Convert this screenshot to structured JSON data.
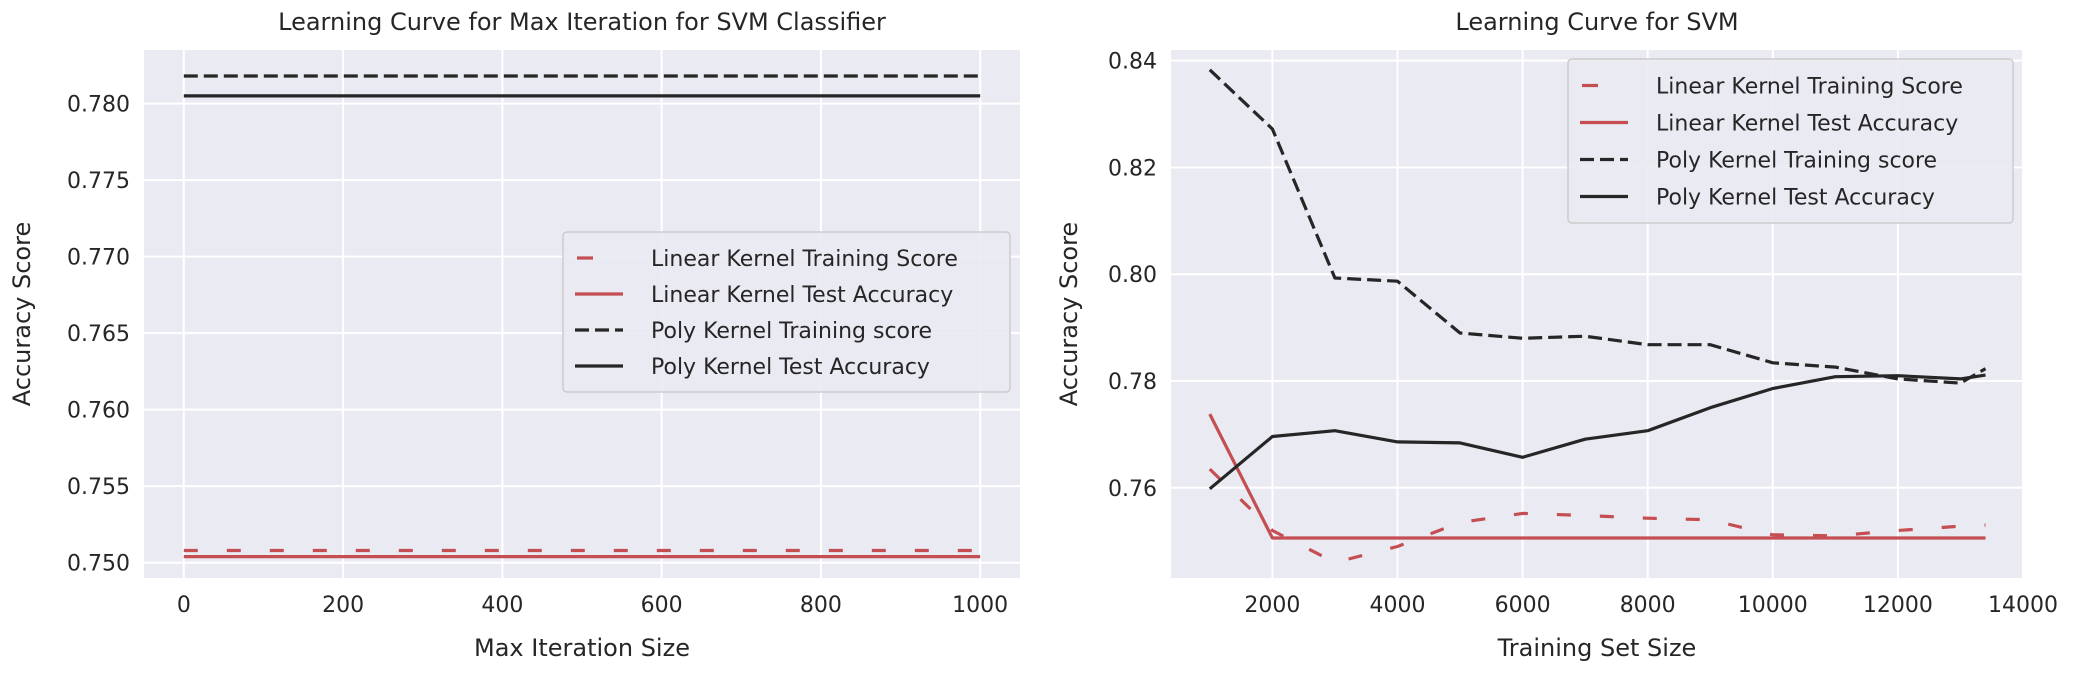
{
  "chart_data": [
    {
      "type": "line",
      "title": "Learning Curve for Max Iteration for SVM Classifier",
      "xlabel": "Max Iteration Size",
      "ylabel": "Accuracy Score",
      "xlim": [
        -50,
        1050
      ],
      "ylim": [
        0.749,
        0.7835
      ],
      "xticks": [
        0,
        200,
        400,
        600,
        800,
        1000
      ],
      "yticks": [
        0.75,
        0.755,
        0.76,
        0.765,
        0.77,
        0.775,
        0.78
      ],
      "ytick_labels": [
        "0.750",
        "0.755",
        "0.760",
        "0.765",
        "0.770",
        "0.775",
        "0.780"
      ],
      "grid": true,
      "legend_position": "center-right",
      "series": [
        {
          "name": "Linear Kernel Training Score",
          "color": "#c44e52",
          "style": "dashed-sparse",
          "x": [
            0,
            1000
          ],
          "y": [
            0.7508,
            0.7508
          ]
        },
        {
          "name": "Linear Kernel Test Accuracy",
          "color": "#c44e52",
          "style": "solid",
          "x": [
            0,
            1000
          ],
          "y": [
            0.7504,
            0.7504
          ]
        },
        {
          "name": "Poly Kernel Training score",
          "color": "#262626",
          "style": "dashed",
          "x": [
            0,
            1000
          ],
          "y": [
            0.7818,
            0.7818
          ]
        },
        {
          "name": "Poly Kernel Test Accuracy",
          "color": "#262626",
          "style": "solid",
          "x": [
            0,
            1000
          ],
          "y": [
            0.7805,
            0.7805
          ]
        }
      ]
    },
    {
      "type": "line",
      "title": "Learning Curve for SVM",
      "xlabel": "Training Set Size",
      "ylabel": "Accuracy Score",
      "xlim": [
        379,
        14000
      ],
      "ylim": [
        0.7431,
        0.842
      ],
      "xticks": [
        2000,
        4000,
        6000,
        8000,
        10000,
        12000,
        14000
      ],
      "yticks": [
        0.76,
        0.78,
        0.8,
        0.82,
        0.84
      ],
      "ytick_labels": [
        "0.76",
        "0.78",
        "0.80",
        "0.82",
        "0.84"
      ],
      "grid": true,
      "legend_position": "upper-right",
      "series": [
        {
          "name": "Linear Kernel Training Score",
          "color": "#c44e52",
          "style": "dashed-sparse",
          "x": [
            1000,
            2000,
            3000,
            4000,
            5000,
            6000,
            7000,
            8000,
            9000,
            10000,
            11000,
            12000,
            13000,
            13400
          ],
          "y": [
            0.7635,
            0.752,
            0.746,
            0.749,
            0.7535,
            0.7552,
            0.7548,
            0.7543,
            0.754,
            0.7512,
            0.751,
            0.752,
            0.7528,
            0.753
          ]
        },
        {
          "name": "Linear Kernel Test Accuracy",
          "color": "#c44e52",
          "style": "solid",
          "x": [
            1000,
            2000,
            3000,
            4000,
            5000,
            6000,
            7000,
            8000,
            9000,
            10000,
            11000,
            12000,
            13000,
            13400
          ],
          "y": [
            0.7738,
            0.7506,
            0.7506,
            0.7506,
            0.7506,
            0.7506,
            0.7506,
            0.7506,
            0.7506,
            0.7506,
            0.7506,
            0.7506,
            0.7506,
            0.7506
          ]
        },
        {
          "name": "Poly Kernel Training score",
          "color": "#262626",
          "style": "dashed",
          "x": [
            1000,
            2000,
            3000,
            4000,
            5000,
            6000,
            7000,
            8000,
            9000,
            10000,
            11000,
            12000,
            13000,
            13400
          ],
          "y": [
            0.8383,
            0.8272,
            0.7993,
            0.7987,
            0.789,
            0.788,
            0.7884,
            0.7868,
            0.7868,
            0.7834,
            0.7826,
            0.7804,
            0.7796,
            0.7823
          ]
        },
        {
          "name": "Poly Kernel Test Accuracy",
          "color": "#262626",
          "style": "solid",
          "x": [
            1000,
            2000,
            3000,
            4000,
            5000,
            6000,
            7000,
            8000,
            9000,
            10000,
            11000,
            12000,
            13000,
            13400
          ],
          "y": [
            0.7598,
            0.7696,
            0.7707,
            0.7686,
            0.7684,
            0.7657,
            0.7691,
            0.7707,
            0.775,
            0.7786,
            0.7808,
            0.781,
            0.7804,
            0.7811
          ]
        }
      ]
    }
  ]
}
